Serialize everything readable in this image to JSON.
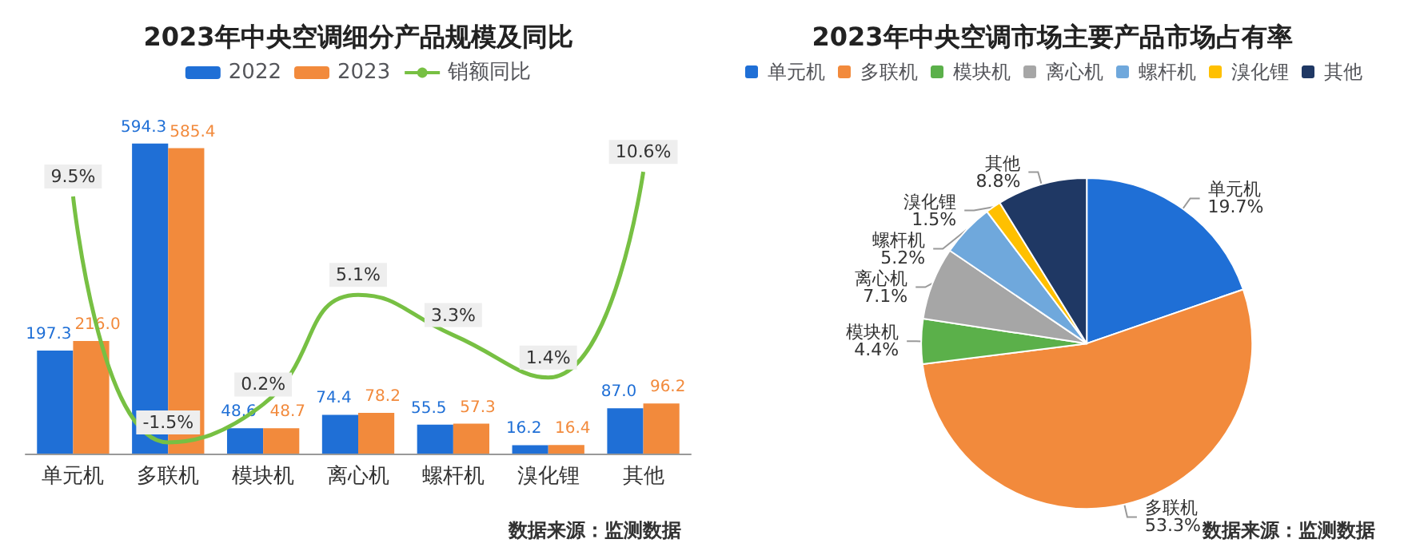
{
  "chart_data": [
    {
      "type": "bar",
      "title": "2023年中央空调细分产品规模及同比",
      "categories": [
        "单元机",
        "多联机",
        "模块机",
        "离心机",
        "螺杆机",
        "溴化锂",
        "其他"
      ],
      "legend": "top",
      "tick_labels": "x",
      "annotations": [
        "数据来源：监测数据"
      ],
      "series": [
        {
          "name": "2022",
          "color": "#1f6fd6",
          "values": [
            197.3,
            594.3,
            48.6,
            74.4,
            55.5,
            16.2,
            87.0
          ],
          "value_labels": [
            "197.3",
            "594.3",
            "48.6",
            "74.4",
            "55.5",
            "16.2",
            "87.0"
          ]
        },
        {
          "name": "2023",
          "color": "#f28a3c",
          "values": [
            216.0,
            585.4,
            48.7,
            78.2,
            57.3,
            16.4,
            96.2
          ],
          "value_labels": [
            "216.0",
            "585.4",
            "48.7",
            "78.2",
            "57.3",
            "16.4",
            "96.2"
          ]
        },
        {
          "name": "销额同比",
          "type": "line",
          "axis": "y2",
          "color": "#77c043",
          "values": [
            9.5,
            -1.5,
            0.2,
            5.1,
            3.3,
            1.4,
            10.6
          ],
          "value_labels": [
            "9.5%",
            "-1.5%",
            "0.2%",
            "5.1%",
            "3.3%",
            "1.4%",
            "10.6%"
          ]
        }
      ]
    },
    {
      "type": "pie",
      "title": "2023年中央空调市场主要产品市场占有率",
      "legend": "top",
      "annotations": [
        "数据来源：监测数据"
      ],
      "categories": [
        "单元机",
        "多联机",
        "模块机",
        "离心机",
        "螺杆机",
        "溴化锂",
        "其他"
      ],
      "values": [
        19.7,
        53.3,
        4.4,
        7.1,
        5.2,
        1.5,
        8.8
      ],
      "value_labels": [
        "19.7%",
        "53.3%",
        "4.4%",
        "7.1%",
        "5.2%",
        "1.5%",
        "8.8%"
      ],
      "colors": [
        "#1f6fd6",
        "#f28a3c",
        "#5bb04a",
        "#a6a6a6",
        "#6fa8dc",
        "#ffc000",
        "#1f3864"
      ]
    }
  ]
}
